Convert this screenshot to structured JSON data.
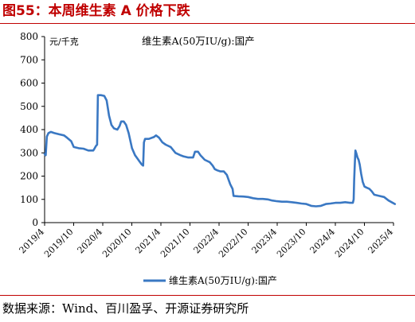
{
  "header": {
    "title": "图55：本周维生素 A 价格下跌"
  },
  "footer": {
    "source": "数据来源：Wind、百川盈孚、开源证券研究所"
  },
  "chart_data": {
    "type": "line",
    "unit_label": "元/千克",
    "title": "",
    "ylim": [
      0,
      800
    ],
    "y_ticks": [
      0,
      100,
      200,
      300,
      400,
      500,
      600,
      700,
      800
    ],
    "x_tick_labels": [
      "2019/4",
      "2019/10",
      "2020/4",
      "2020/10",
      "2021/4",
      "2021/10",
      "2022/4",
      "2022/10",
      "2023/4",
      "2023/10",
      "2024/4",
      "2024/10",
      "2025/4"
    ],
    "grid": false,
    "legend_position": "bottom",
    "series": [
      {
        "name": "维生素A(50万IU/g):国产",
        "color": "#3a78c3",
        "inline_label": "维生素A(50万IU/g):国产",
        "points": [
          [
            "2019-04-01",
            295
          ],
          [
            "2019-04-08",
            290
          ],
          [
            "2019-04-15",
            370
          ],
          [
            "2019-04-25",
            385
          ],
          [
            "2019-05-10",
            390
          ],
          [
            "2019-06-01",
            385
          ],
          [
            "2019-07-01",
            380
          ],
          [
            "2019-08-01",
            375
          ],
          [
            "2019-08-20",
            365
          ],
          [
            "2019-09-15",
            350
          ],
          [
            "2019-10-01",
            325
          ],
          [
            "2019-11-01",
            320
          ],
          [
            "2019-12-01",
            318
          ],
          [
            "2020-01-01",
            310
          ],
          [
            "2020-02-01",
            310
          ],
          [
            "2020-02-10",
            320
          ],
          [
            "2020-02-18",
            330
          ],
          [
            "2020-02-25",
            335
          ],
          [
            "2020-03-01",
            548
          ],
          [
            "2020-03-20",
            548
          ],
          [
            "2020-04-10",
            545
          ],
          [
            "2020-04-25",
            525
          ],
          [
            "2020-05-10",
            460
          ],
          [
            "2020-05-25",
            420
          ],
          [
            "2020-06-10",
            405
          ],
          [
            "2020-07-01",
            400
          ],
          [
            "2020-07-15",
            415
          ],
          [
            "2020-07-25",
            435
          ],
          [
            "2020-08-10",
            435
          ],
          [
            "2020-08-25",
            420
          ],
          [
            "2020-09-10",
            385
          ],
          [
            "2020-10-01",
            320
          ],
          [
            "2020-10-20",
            290
          ],
          [
            "2020-11-05",
            275
          ],
          [
            "2020-11-20",
            260
          ],
          [
            "2020-12-01",
            250
          ],
          [
            "2020-12-10",
            245
          ],
          [
            "2020-12-15",
            345
          ],
          [
            "2020-12-22",
            360
          ],
          [
            "2021-01-15",
            360
          ],
          [
            "2021-02-15",
            368
          ],
          [
            "2021-03-01",
            375
          ],
          [
            "2021-03-20",
            365
          ],
          [
            "2021-04-10",
            345
          ],
          [
            "2021-05-01",
            335
          ],
          [
            "2021-06-01",
            325
          ],
          [
            "2021-07-01",
            300
          ],
          [
            "2021-08-01",
            290
          ],
          [
            "2021-08-20",
            285
          ],
          [
            "2021-09-20",
            280
          ],
          [
            "2021-10-20",
            280
          ],
          [
            "2021-11-01",
            305
          ],
          [
            "2021-11-20",
            305
          ],
          [
            "2021-12-05",
            290
          ],
          [
            "2022-01-01",
            270
          ],
          [
            "2022-02-01",
            260
          ],
          [
            "2022-02-20",
            245
          ],
          [
            "2022-03-05",
            230
          ],
          [
            "2022-03-20",
            225
          ],
          [
            "2022-04-10",
            220
          ],
          [
            "2022-05-01",
            220
          ],
          [
            "2022-05-20",
            205
          ],
          [
            "2022-06-10",
            165
          ],
          [
            "2022-06-25",
            145
          ],
          [
            "2022-07-01",
            115
          ],
          [
            "2022-08-01",
            113
          ],
          [
            "2022-09-01",
            112
          ],
          [
            "2022-10-01",
            110
          ],
          [
            "2022-11-01",
            105
          ],
          [
            "2022-12-01",
            102
          ],
          [
            "2023-01-01",
            102
          ],
          [
            "2023-02-01",
            100
          ],
          [
            "2023-03-01",
            95
          ],
          [
            "2023-04-01",
            92
          ],
          [
            "2023-05-01",
            90
          ],
          [
            "2023-06-01",
            90
          ],
          [
            "2023-07-01",
            88
          ],
          [
            "2023-08-01",
            85
          ],
          [
            "2023-09-01",
            82
          ],
          [
            "2023-10-01",
            80
          ],
          [
            "2023-11-01",
            72
          ],
          [
            "2023-12-01",
            70
          ],
          [
            "2024-01-01",
            72
          ],
          [
            "2024-02-01",
            80
          ],
          [
            "2024-03-01",
            82
          ],
          [
            "2024-04-01",
            85
          ],
          [
            "2024-05-01",
            85
          ],
          [
            "2024-06-01",
            88
          ],
          [
            "2024-07-01",
            85
          ],
          [
            "2024-07-20",
            85
          ],
          [
            "2024-07-25",
            100
          ],
          [
            "2024-07-28",
            180
          ],
          [
            "2024-08-01",
            250
          ],
          [
            "2024-08-05",
            310
          ],
          [
            "2024-08-12",
            295
          ],
          [
            "2024-08-18",
            280
          ],
          [
            "2024-08-25",
            270
          ],
          [
            "2024-09-01",
            250
          ],
          [
            "2024-09-10",
            210
          ],
          [
            "2024-09-20",
            175
          ],
          [
            "2024-10-01",
            155
          ],
          [
            "2024-10-15",
            150
          ],
          [
            "2024-11-01",
            145
          ],
          [
            "2024-11-15",
            135
          ],
          [
            "2024-12-01",
            120
          ],
          [
            "2025-01-01",
            115
          ],
          [
            "2025-02-01",
            110
          ],
          [
            "2025-03-01",
            95
          ],
          [
            "2025-03-20",
            88
          ],
          [
            "2025-04-10",
            80
          ]
        ]
      }
    ]
  }
}
